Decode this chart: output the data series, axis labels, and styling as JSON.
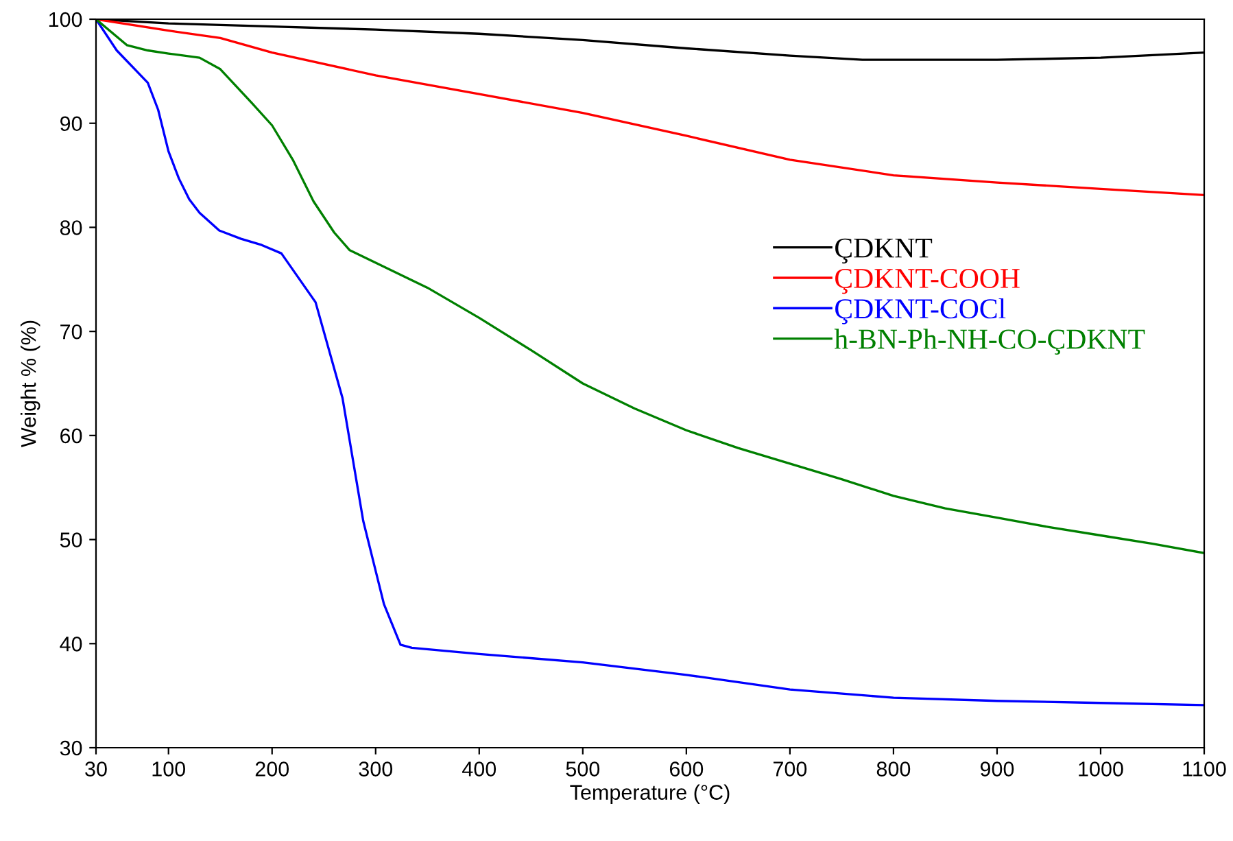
{
  "chart_data": {
    "type": "line",
    "xlabel": "Temperature (°C)",
    "ylabel": "Weight % (%)",
    "xlim": [
      30,
      1100
    ],
    "ylim": [
      30,
      100
    ],
    "xticks": [
      30,
      100,
      200,
      300,
      400,
      500,
      600,
      700,
      800,
      900,
      1000,
      1100
    ],
    "yticks": [
      30,
      40,
      50,
      60,
      70,
      80,
      90,
      100
    ],
    "grid": false,
    "legend": "center right",
    "marker": "none",
    "line_style": "solid",
    "series": [
      {
        "name": "ÇDKNT",
        "color": "#000000",
        "x": [
          30,
          100,
          200,
          300,
          400,
          500,
          600,
          700,
          770,
          900,
          1000,
          1100
        ],
        "values": [
          100,
          99.6,
          99.3,
          99.0,
          98.6,
          98.0,
          97.2,
          96.5,
          96.1,
          96.1,
          96.3,
          96.8
        ]
      },
      {
        "name": "ÇDKNT-COOH",
        "color": "#ff0000",
        "x": [
          30,
          100,
          150,
          200,
          300,
          400,
          500,
          600,
          700,
          800,
          900,
          1000,
          1100
        ],
        "values": [
          100,
          98.9,
          98.2,
          96.8,
          94.6,
          92.8,
          91.0,
          88.8,
          86.5,
          85.0,
          84.3,
          83.7,
          83.1
        ]
      },
      {
        "name": "ÇDKNT-COCl",
        "color": "#0000ff",
        "x": [
          30,
          50,
          80,
          90,
          100,
          110,
          120,
          130,
          149,
          170,
          190,
          209,
          242,
          268,
          288,
          308,
          324,
          335,
          400,
          500,
          600,
          700,
          800,
          900,
          1000,
          1100
        ],
        "values": [
          100,
          97,
          93.9,
          91.3,
          87.3,
          84.7,
          82.7,
          81.4,
          79.7,
          78.9,
          78.3,
          77.5,
          72.8,
          63.6,
          51.8,
          43.8,
          39.9,
          39.6,
          39.0,
          38.2,
          37.0,
          35.6,
          34.8,
          34.5,
          34.3,
          34.1
        ]
      },
      {
        "name": "h-BN-Ph-NH-CO-ÇDKNT",
        "color": "#008000",
        "x": [
          30,
          60,
          80,
          100,
          130,
          150,
          180,
          200,
          220,
          240,
          260,
          275,
          300,
          350,
          400,
          450,
          500,
          550,
          600,
          650,
          700,
          750,
          800,
          850,
          900,
          950,
          1000,
          1050,
          1100
        ],
        "values": [
          100,
          97.5,
          97,
          96.7,
          96.3,
          95.2,
          92,
          89.8,
          86.5,
          82.5,
          79.5,
          77.8,
          76.6,
          74.2,
          71.3,
          68.2,
          65.0,
          62.6,
          60.5,
          58.8,
          57.3,
          55.8,
          54.2,
          53.0,
          52.1,
          51.2,
          50.4,
          49.6,
          48.7
        ]
      }
    ]
  }
}
